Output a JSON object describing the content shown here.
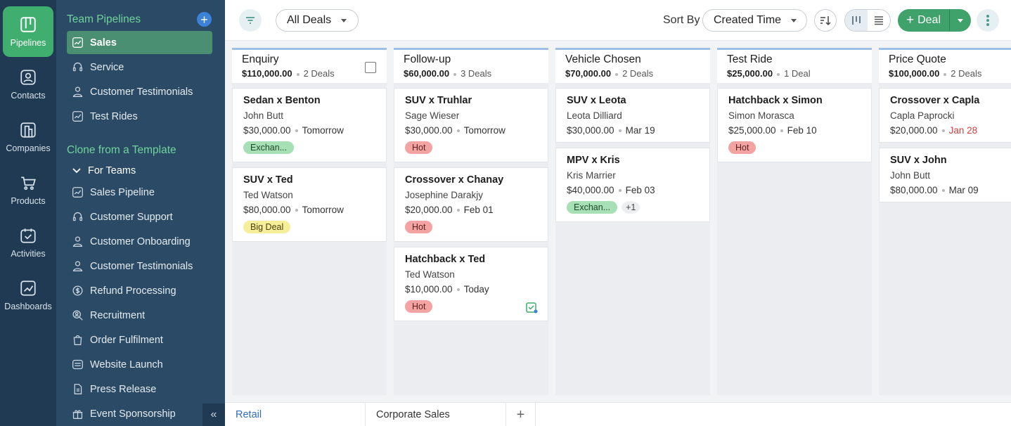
{
  "rail": [
    {
      "label": "Pipelines",
      "icon": "pipelines-icon",
      "active": true
    },
    {
      "label": "Contacts",
      "icon": "contacts-icon"
    },
    {
      "label": "Companies",
      "icon": "companies-icon"
    },
    {
      "label": "Products",
      "icon": "cart-icon"
    },
    {
      "label": "Activities",
      "icon": "calendar-check-icon"
    },
    {
      "label": "Dashboards",
      "icon": "chart-icon"
    }
  ],
  "sidebar": {
    "team_heading": "Team Pipelines",
    "team_items": [
      "Sales",
      "Service",
      "Customer Testimonials",
      "Test Rides"
    ],
    "clone_heading": "Clone from a Template",
    "group_label": "For Teams",
    "template_items": [
      "Sales Pipeline",
      "Customer Support",
      "Customer Onboarding",
      "Customer Testimonials",
      "Refund Processing",
      "Recruitment",
      "Order Fulfilment",
      "Website Launch",
      "Press Release",
      "Event Sponsorship"
    ],
    "collapse_glyph": "«"
  },
  "toolbar": {
    "view_select": "All Deals",
    "sort_label": "Sort By",
    "sort_select": "Created Time",
    "deal_button": "Deal"
  },
  "columns": [
    {
      "title": "Enquiry",
      "amount": "$110,000.00",
      "count": "2 Deals",
      "cards": [
        {
          "title": "Sedan x Benton",
          "contact": "John Butt",
          "amount": "$30,000.00",
          "date": "Tomorrow",
          "tags": [
            {
              "label": "Exchan...",
              "kind": "exch"
            }
          ]
        },
        {
          "title": "SUV x Ted",
          "contact": "Ted Watson",
          "amount": "$80,000.00",
          "date": "Tomorrow",
          "tags": [
            {
              "label": "Big Deal",
              "kind": "big"
            }
          ]
        }
      ]
    },
    {
      "title": "Follow-up",
      "amount": "$60,000.00",
      "count": "3 Deals",
      "cards": [
        {
          "title": "SUV x Truhlar",
          "contact": "Sage Wieser",
          "amount": "$30,000.00",
          "date": "Tomorrow",
          "tags": [
            {
              "label": "Hot",
              "kind": "hot"
            }
          ]
        },
        {
          "title": "Crossover x Chanay",
          "contact": "Josephine Darakjy",
          "amount": "$20,000.00",
          "date": "Feb 01",
          "tags": [
            {
              "label": "Hot",
              "kind": "hot"
            }
          ]
        },
        {
          "title": "Hatchback x Ted",
          "contact": "Ted Watson",
          "amount": "$10,000.00",
          "date": "Today",
          "tags": [
            {
              "label": "Hot",
              "kind": "hot"
            }
          ]
        }
      ]
    },
    {
      "title": "Vehicle Chosen",
      "amount": "$70,000.00",
      "count": "2 Deals",
      "cards": [
        {
          "title": "SUV x Leota",
          "contact": "Leota Dilliard",
          "amount": "$30,000.00",
          "date": "Mar 19",
          "tags": []
        },
        {
          "title": "MPV x Kris",
          "contact": "Kris Marrier",
          "amount": "$40,000.00",
          "date": "Feb 03",
          "tags": [
            {
              "label": "Exchan...",
              "kind": "exch"
            },
            {
              "label": "+1",
              "kind": "more"
            }
          ]
        }
      ]
    },
    {
      "title": "Test Ride",
      "amount": "$25,000.00",
      "count": "1 Deal",
      "cards": [
        {
          "title": "Hatchback x Simon",
          "contact": "Simon Morasca",
          "amount": "$25,000.00",
          "date": "Feb 10",
          "tags": [
            {
              "label": "Hot",
              "kind": "hot"
            }
          ]
        }
      ]
    },
    {
      "title": "Price Quote",
      "amount": "$100,000.00",
      "count": "2 Deals",
      "cards": [
        {
          "title": "Crossover x Capla",
          "contact": "Capla Paprocki",
          "amount": "$20,000.00",
          "date": "Jan 28",
          "overdue": true,
          "tags": []
        },
        {
          "title": "SUV x John",
          "contact": "John Butt",
          "amount": "$80,000.00",
          "date": "Mar 09",
          "tags": []
        }
      ]
    }
  ],
  "tabs": [
    "Retail",
    "Corporate Sales"
  ],
  "colors": {
    "accent_green": "#3fae6e",
    "sidebar": "#2a4a66",
    "rail": "#1f3a52",
    "link_blue": "#2f6fb8"
  }
}
